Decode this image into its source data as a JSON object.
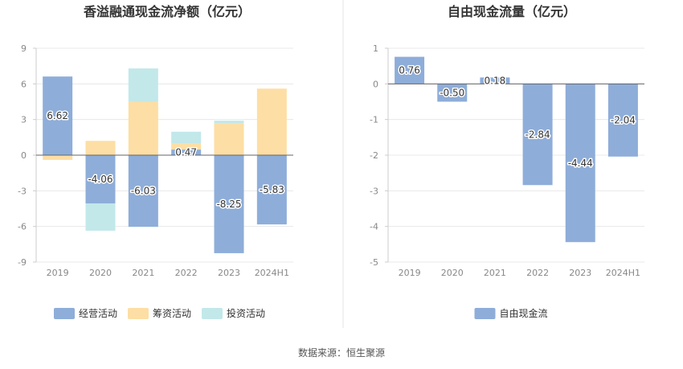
{
  "source": "数据来源：恒生聚源",
  "colors": {
    "operating": "#8eadd9",
    "financing": "#fddea4",
    "investing": "#86d7da",
    "free": "#8eadd9",
    "grid": "#e8e8e8",
    "axis": "#666666"
  },
  "chart_data": [
    {
      "type": "bar",
      "stacked": true,
      "title": "香溢融通现金流净额（亿元）",
      "categories": [
        "2019",
        "2020",
        "2021",
        "2022",
        "2023",
        "2024H1"
      ],
      "ylim": [
        -9,
        9
      ],
      "yticks": [
        9,
        6,
        3,
        0,
        -3,
        -6,
        -9
      ],
      "grid": true,
      "legend_position": "bottom",
      "series": [
        {
          "name": "经营活动",
          "color": "#8eadd9",
          "values": [
            6.62,
            -4.06,
            -6.03,
            0.47,
            -8.25,
            -5.83
          ],
          "labels": [
            "6.62",
            "-4.06",
            "-6.03",
            "0.47",
            "-8.25",
            "-5.83"
          ]
        },
        {
          "name": "筹资活动",
          "color": "#fddea4",
          "values": [
            -0.4,
            1.2,
            4.5,
            0.5,
            2.7,
            5.6
          ]
        },
        {
          "name": "投资活动",
          "color": "#c2e8ea",
          "values": [
            0,
            -2.3,
            2.8,
            1.0,
            0.2,
            0
          ]
        }
      ]
    },
    {
      "type": "bar",
      "title": "自由现金流量（亿元）",
      "categories": [
        "2019",
        "2020",
        "2021",
        "2022",
        "2023",
        "2024H1"
      ],
      "ylim": [
        -5,
        1
      ],
      "yticks": [
        1,
        0,
        -1,
        -2,
        -3,
        -4,
        -5
      ],
      "grid": true,
      "legend_position": "bottom",
      "series": [
        {
          "name": "自由现金流",
          "color": "#8eadd9",
          "values": [
            0.76,
            -0.5,
            0.18,
            -2.84,
            -4.44,
            -2.04
          ],
          "labels": [
            "0.76",
            "-0.50",
            "0.18",
            "-2.84",
            "-4.44",
            "-2.04"
          ]
        }
      ]
    }
  ]
}
